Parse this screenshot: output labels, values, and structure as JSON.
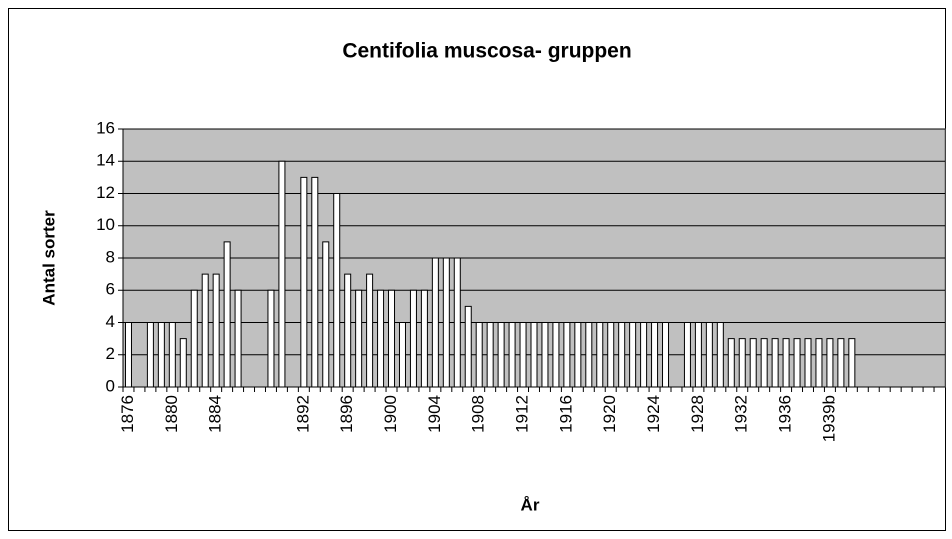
{
  "chart_data": {
    "type": "bar",
    "title": "Centifolia muscosa- gruppen",
    "x_label": "År",
    "y_label": "Antal sorter",
    "categories": [
      "1876",
      null,
      null,
      null,
      "1880",
      null,
      null,
      null,
      "1884",
      null,
      null,
      null,
      null,
      null,
      null,
      null,
      "1892",
      null,
      null,
      null,
      "1896",
      null,
      null,
      null,
      "1900",
      null,
      null,
      null,
      "1904",
      null,
      null,
      null,
      "1908",
      null,
      null,
      null,
      "1912",
      null,
      null,
      null,
      "1916",
      null,
      null,
      null,
      "1920",
      null,
      null,
      null,
      "1924",
      null,
      null,
      null,
      "1928",
      null,
      null,
      null,
      "1932",
      null,
      null,
      null,
      "1936",
      null,
      null,
      null,
      "1939b",
      null,
      null,
      null,
      null,
      null,
      null,
      null,
      null,
      null,
      null
    ],
    "values": [
      4,
      null,
      4,
      4,
      4,
      3,
      6,
      7,
      7,
      9,
      6,
      null,
      null,
      6,
      14,
      null,
      13,
      13,
      9,
      12,
      7,
      6,
      7,
      6,
      6,
      4,
      6,
      6,
      8,
      8,
      8,
      5,
      4,
      4,
      4,
      4,
      4,
      4,
      4,
      4,
      4,
      4,
      4,
      4,
      4,
      4,
      4,
      4,
      4,
      4,
      null,
      4,
      4,
      4,
      4,
      3,
      3,
      3,
      3,
      3,
      3,
      3,
      3,
      3,
      3,
      3,
      3,
      null,
      null,
      null,
      null,
      null,
      null,
      null,
      null
    ],
    "color": "#ffffff",
    "ylim": [
      0,
      16
    ],
    "yticks": [
      0,
      2,
      4,
      6,
      8,
      10,
      12,
      14,
      16
    ],
    "grid": true,
    "plot_background": "#c0c0c0"
  }
}
